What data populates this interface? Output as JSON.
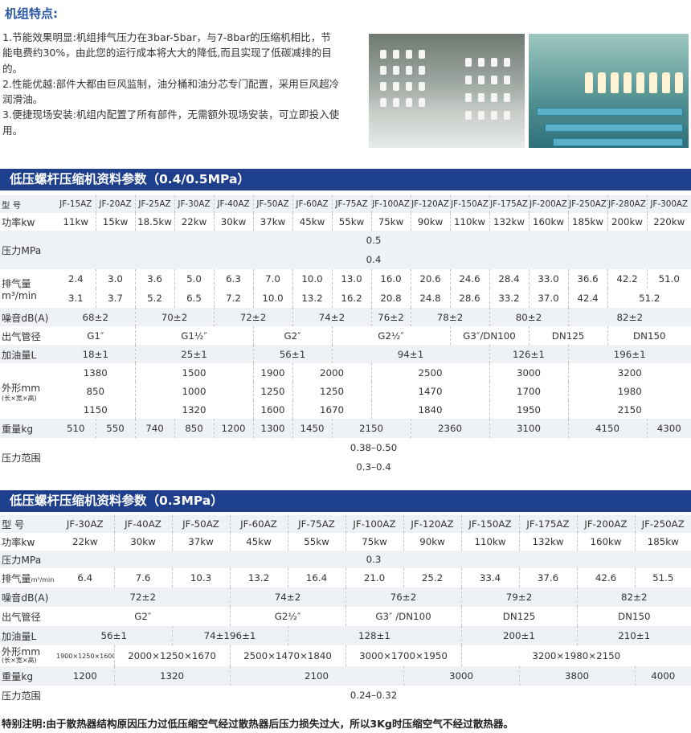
{
  "features": {
    "title": "机组特点:",
    "items": [
      "1.节能效果明显:机组排气压力在3bar-5bar，与7-8bar的压缩机相比，节能电费约30%，由此您的运行成本将大大的降低,而且实现了低碳减排的目的。",
      "2.性能优越:部件大都由巨风监制，油分桶和油分芯专门配置，采用巨风超冷润滑油。",
      "3.便捷现场安装:机组内配置了所有部件，无需额外现场安装，可立即投入使用。"
    ]
  },
  "table1": {
    "title": "低压螺杆压缩机资料参数（0.4/0.5MPa）",
    "labels": {
      "model": "型 号",
      "power": "功率kw",
      "pressure": "压力MPa",
      "exhaust_a": "排气量",
      "exhaust_b": "m³/min",
      "noise": "噪音dB(A)",
      "pipe": "出气管径",
      "oil": "加油量L",
      "dim_a": "外形mm",
      "dim_b": "(长×宽×高)",
      "weight": "重量kg",
      "range": "压力范围"
    },
    "models": [
      "JF-15AZ",
      "JF-20AZ",
      "JF-25AZ",
      "JF-30AZ",
      "JF-40AZ",
      "JF-50AZ",
      "JF-60AZ",
      "JF-75AZ",
      "JF-100AZ",
      "JF-120AZ",
      "JF-150AZ",
      "JF-175AZ",
      "JF-200AZ",
      "JF-250AZ",
      "JF-280AZ",
      "JF-300AZ"
    ],
    "power": [
      "11kw",
      "15kw",
      "18.5kw",
      "22kw",
      "30kw",
      "37kw",
      "45kw",
      "55kw",
      "75kw",
      "90kw",
      "110kw",
      "132kw",
      "160kw",
      "185kw",
      "200kw",
      "220kw"
    ],
    "pressure": [
      "0.5",
      "0.4"
    ],
    "exhaust_05": [
      "2.4",
      "3.0",
      "3.6",
      "5.0",
      "6.3",
      "7.0",
      "10.0",
      "13.0",
      "16.0",
      "20.6",
      "24.6",
      "28.4",
      "33.0",
      "36.6",
      "42.2",
      "51.0"
    ],
    "exhaust_04": [
      "3.1",
      "3.7",
      "5.2",
      "6.5",
      "7.2",
      "10.0",
      "13.2",
      "16.2",
      "20.8",
      "24.8",
      "28.6",
      "33.2",
      "37.0",
      "42.4",
      "51.2",
      ""
    ],
    "noise": [
      "68±2",
      "70±2",
      "72±2",
      "74±2",
      "76±2",
      "78±2",
      "80±2",
      "82±2"
    ],
    "pipe": [
      "G1″",
      "G1½″",
      "G2″",
      "G2½″",
      "G3″/DN100",
      "DN125",
      "DN150"
    ],
    "oil": [
      "18±1",
      "25±1",
      "56±1",
      "94±1",
      "126±1",
      "196±1"
    ],
    "dim_l": [
      "1380",
      "1500",
      "1900",
      "2000",
      "2500",
      "3000",
      "3200"
    ],
    "dim_w": [
      "850",
      "1000",
      "1250",
      "1250",
      "1470",
      "1700",
      "1980"
    ],
    "dim_h": [
      "1150",
      "1320",
      "1600",
      "1670",
      "1840",
      "1950",
      "2150"
    ],
    "weight": [
      "510",
      "550",
      "740",
      "850",
      "1200",
      "1300",
      "1450",
      "2150",
      "2360",
      "3100",
      "4150",
      "4300"
    ],
    "range": [
      "0.38–0.50",
      "0.3–0.4"
    ]
  },
  "table2": {
    "title": "低压螺杆压缩机资料参数（0.3MPa）",
    "labels": {
      "model": "型 号",
      "power": "功率kw",
      "pressure": "压力MPa",
      "exhaust_a": "排气量",
      "exhaust_unit": "m³/min",
      "noise": "噪音dB(A)",
      "pipe": "出气管径",
      "oil": "加油量L",
      "dim_a": "外形mm",
      "dim_b": "(长×宽×高)",
      "weight": "重量kg",
      "range": "压力范围"
    },
    "models": [
      "JF-30AZ",
      "JF-40AZ",
      "JF-50AZ",
      "JF-60AZ",
      "JF-75AZ",
      "JF-100AZ",
      "JF-120AZ",
      "JF-150AZ",
      "JF-175AZ",
      "JF-200AZ",
      "JF-250AZ"
    ],
    "power": [
      "22kw",
      "30kw",
      "37kw",
      "45kw",
      "55kw",
      "75kw",
      "90kw",
      "110kw",
      "132kw",
      "160kw",
      "185kw"
    ],
    "pressure": "0.3",
    "exhaust": [
      "6.4",
      "7.6",
      "10.3",
      "13.2",
      "16.4",
      "21.0",
      "25.2",
      "33.4",
      "37.6",
      "42.6",
      "51.5"
    ],
    "noise": [
      "72±2",
      "74±2",
      "76±2",
      "79±2",
      "82±2"
    ],
    "pipe": [
      "G2″",
      "G2½″",
      "G3″ /DN100",
      "DN125",
      "DN150"
    ],
    "oil": [
      "56±1",
      "74±196±1",
      "128±1",
      "200±1",
      "210±1"
    ],
    "dims": [
      "1900×1250×1600",
      "2000×1250×1670",
      "2500×1470×1840",
      "3000×1700×1950",
      "3200×1980×2150"
    ],
    "weight": [
      "1200",
      "1320",
      "2100",
      "3000",
      "3800",
      "4000"
    ],
    "range": "0.24–0.32"
  },
  "note": "特别注明:由于散热器结构原因压力过低压缩空气经过散热器后压力损失过大，所以3Kg时压缩空气不经过散热器。",
  "colors": {
    "header_bg": "#1d3f8c",
    "title_blue": "#2a56a8",
    "alt_row": "#eef1f6"
  }
}
